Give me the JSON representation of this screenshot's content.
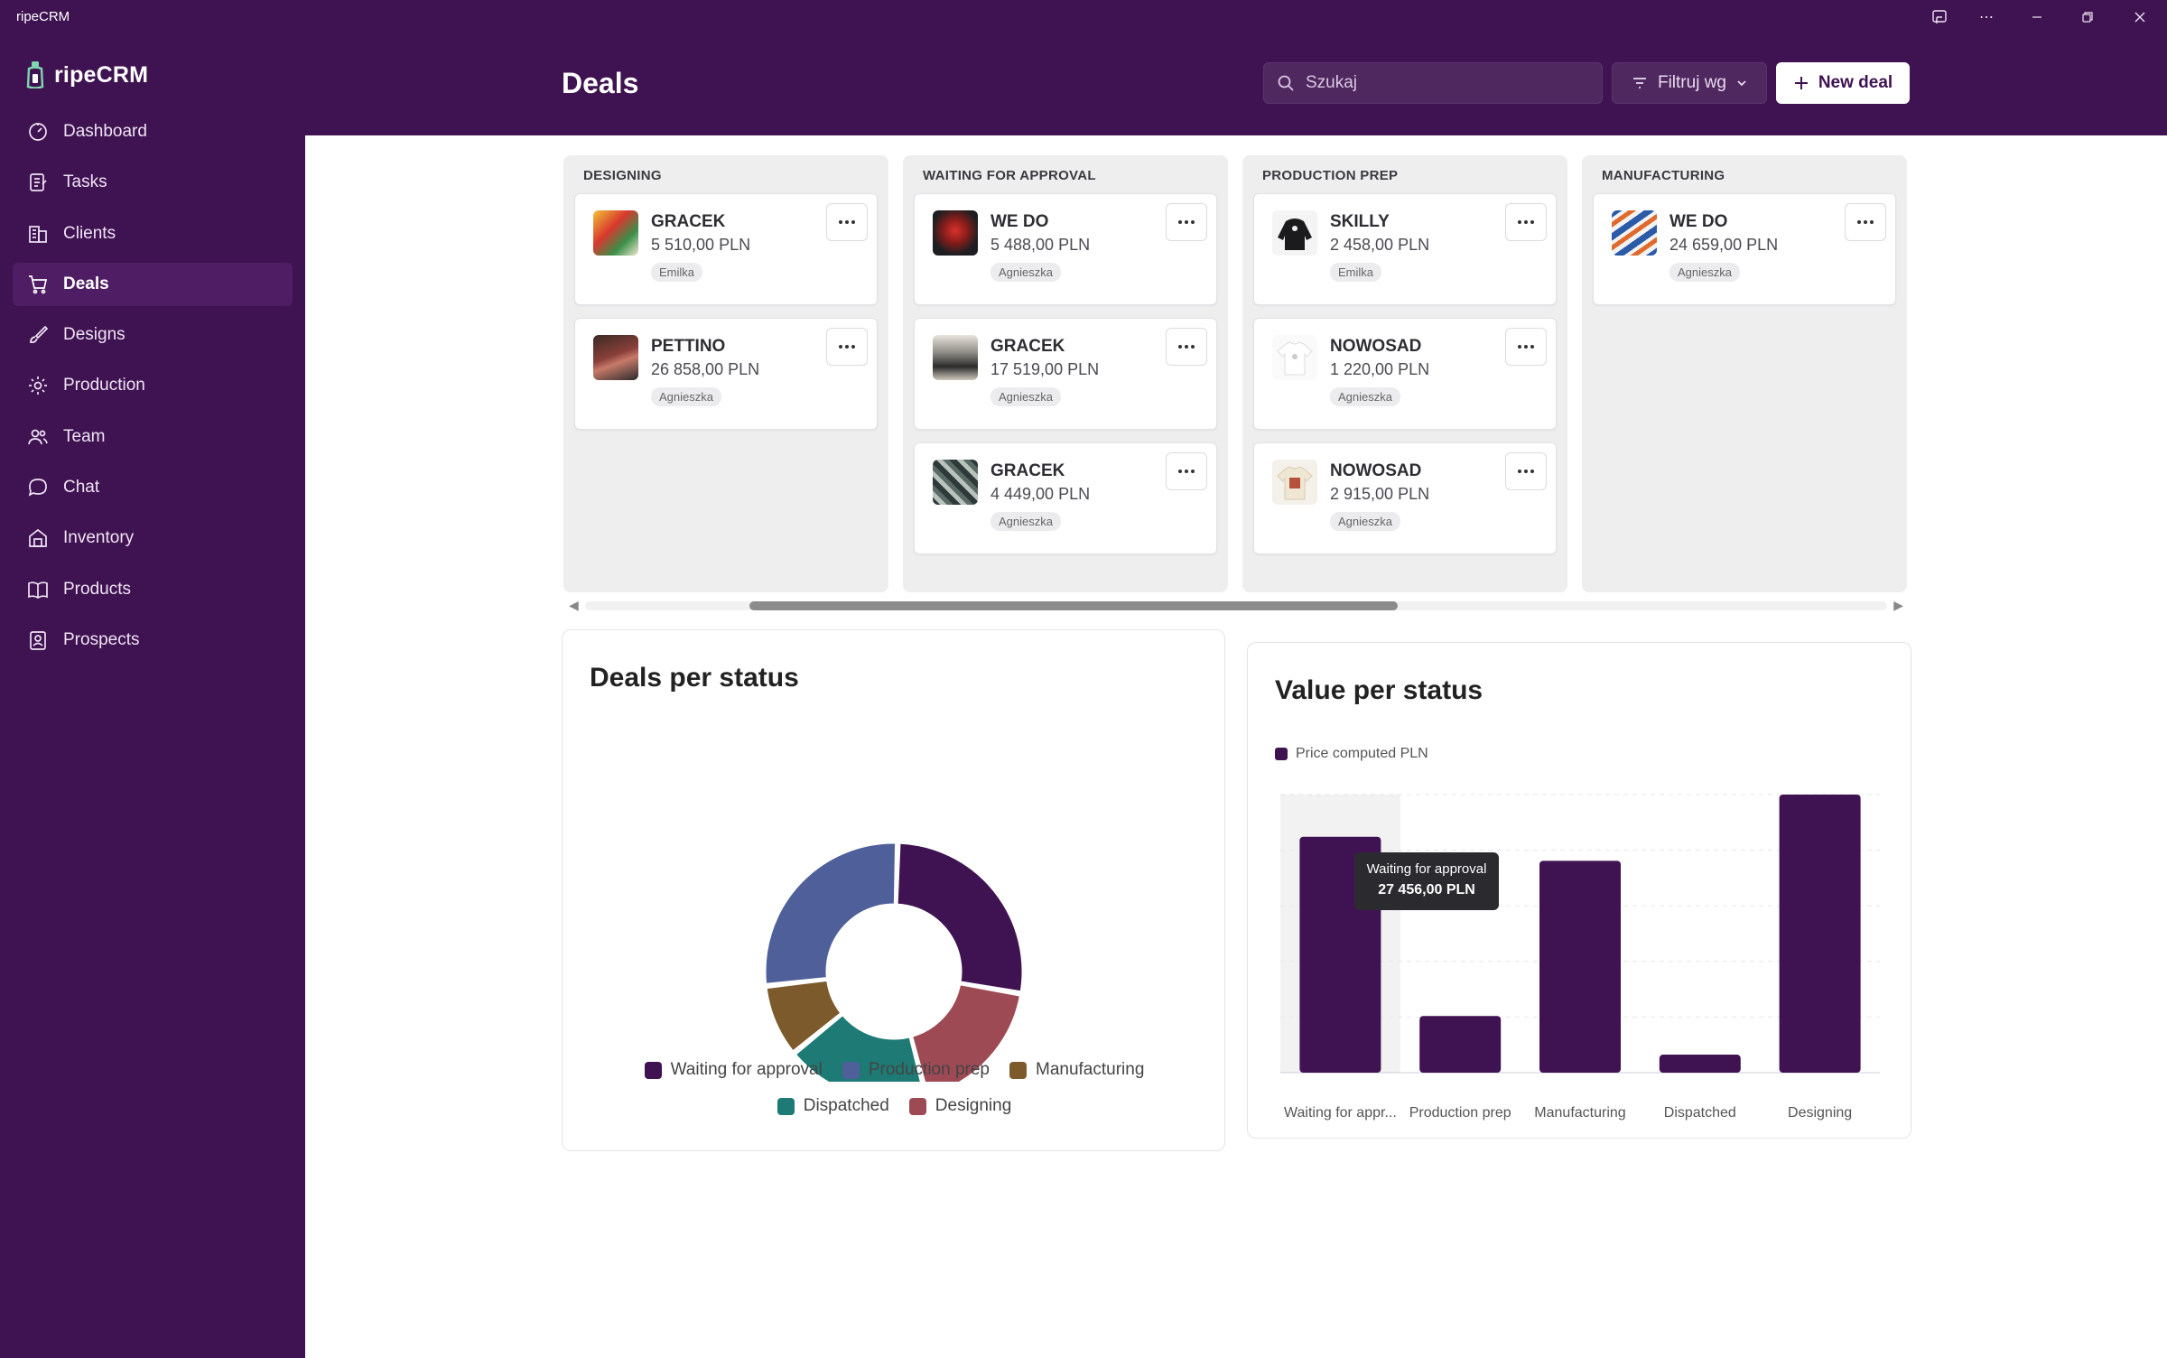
{
  "window": {
    "title": "ripeCRM"
  },
  "brand": {
    "name": "ripeCRM"
  },
  "nav": [
    {
      "label": "Dashboard",
      "icon": "gauge-icon",
      "active": false
    },
    {
      "label": "Tasks",
      "icon": "tasks-icon",
      "active": false
    },
    {
      "label": "Clients",
      "icon": "building-icon",
      "active": false
    },
    {
      "label": "Deals",
      "icon": "cart-icon",
      "active": true
    },
    {
      "label": "Designs",
      "icon": "brush-icon",
      "active": false
    },
    {
      "label": "Production",
      "icon": "gear-icon",
      "active": false
    },
    {
      "label": "Team",
      "icon": "people-icon",
      "active": false
    },
    {
      "label": "Chat",
      "icon": "chat-bubble-icon",
      "active": false
    },
    {
      "label": "Inventory",
      "icon": "warehouse-icon",
      "active": false
    },
    {
      "label": "Products",
      "icon": "book-icon",
      "active": false
    },
    {
      "label": "Prospects",
      "icon": "contact-badge-icon",
      "active": false
    }
  ],
  "header": {
    "title": "Deals",
    "search_placeholder": "Szukaj",
    "filter_label": "Filtruj wg",
    "new_deal_label": "New deal"
  },
  "board": {
    "columns": [
      {
        "title": "DESIGNING",
        "cards": [
          {
            "client": "GRACEK",
            "price": "5 510,00 PLN",
            "assignee": "Emilka",
            "thumb": "poster-multicolor"
          },
          {
            "client": "PETTINO",
            "price": "26 858,00 PLN",
            "assignee": "Agnieszka",
            "thumb": "photo-dark-red"
          }
        ]
      },
      {
        "title": "WAITING FOR APPROVAL",
        "cards": [
          {
            "client": "WE DO",
            "price": "5 488,00 PLN",
            "assignee": "Agnieszka",
            "thumb": "tshirt-red-print"
          },
          {
            "client": "GRACEK",
            "price": "17 519,00 PLN",
            "assignee": "Agnieszka",
            "thumb": "photo-mountain"
          },
          {
            "client": "GRACEK",
            "price": "4 449,00 PLN",
            "assignee": "Agnieszka",
            "thumb": "photo-camo"
          }
        ]
      },
      {
        "title": "PRODUCTION PREP",
        "cards": [
          {
            "client": "SKILLY",
            "price": "2 458,00 PLN",
            "assignee": "Emilka",
            "thumb": "hoodie-black"
          },
          {
            "client": "NOWOSAD",
            "price": "1 220,00 PLN",
            "assignee": "Agnieszka",
            "thumb": "tshirt-white"
          },
          {
            "client": "NOWOSAD",
            "price": "2 915,00 PLN",
            "assignee": "Agnieszka",
            "thumb": "tshirt-cream-print"
          }
        ]
      },
      {
        "title": "MANUFACTURING",
        "cards": [
          {
            "client": "WE DO",
            "price": "24 659,00 PLN",
            "assignee": "Agnieszka",
            "thumb": "pattern-blue-orange"
          }
        ]
      }
    ]
  },
  "colors": {
    "primary": "#3f1351",
    "waiting": "#3f1351",
    "production_prep": "#4f5f99",
    "manufacturing": "#7d5a2c",
    "dispatched": "#1e7a74",
    "designing": "#9e4a55"
  },
  "donut": {
    "title": "Deals per status",
    "legend": [
      "Waiting for approval",
      "Production prep",
      "Manufacturing",
      "Dispatched",
      "Designing"
    ]
  },
  "bars": {
    "title": "Value per status",
    "legend_label": "Price computed PLN",
    "tooltip": {
      "label": "Waiting for approval",
      "value": "27 456,00 PLN"
    },
    "x_labels": [
      "Waiting for appr...",
      "Production prep",
      "Manufacturing",
      "Dispatched",
      "Designing"
    ]
  },
  "chart_data": [
    {
      "type": "pie",
      "title": "Deals per status",
      "categories": [
        "Waiting for approval",
        "Production prep",
        "Manufacturing",
        "Dispatched",
        "Designing"
      ],
      "values": [
        3,
        3,
        1,
        2,
        2
      ],
      "colors": [
        "#3f1351",
        "#4f5f99",
        "#7d5a2c",
        "#1e7a74",
        "#9e4a55"
      ],
      "donut": true,
      "legend": "bottom"
    },
    {
      "type": "bar",
      "title": "Value per status",
      "categories": [
        "Waiting for approval",
        "Production prep",
        "Manufacturing",
        "Dispatched",
        "Designing"
      ],
      "series": [
        {
          "name": "Price computed PLN",
          "values": [
            27456,
            6593,
            24659,
            2100,
            32368
          ]
        }
      ],
      "ylim": [
        0,
        32368
      ],
      "grid": true,
      "legend": "top-left"
    }
  ]
}
